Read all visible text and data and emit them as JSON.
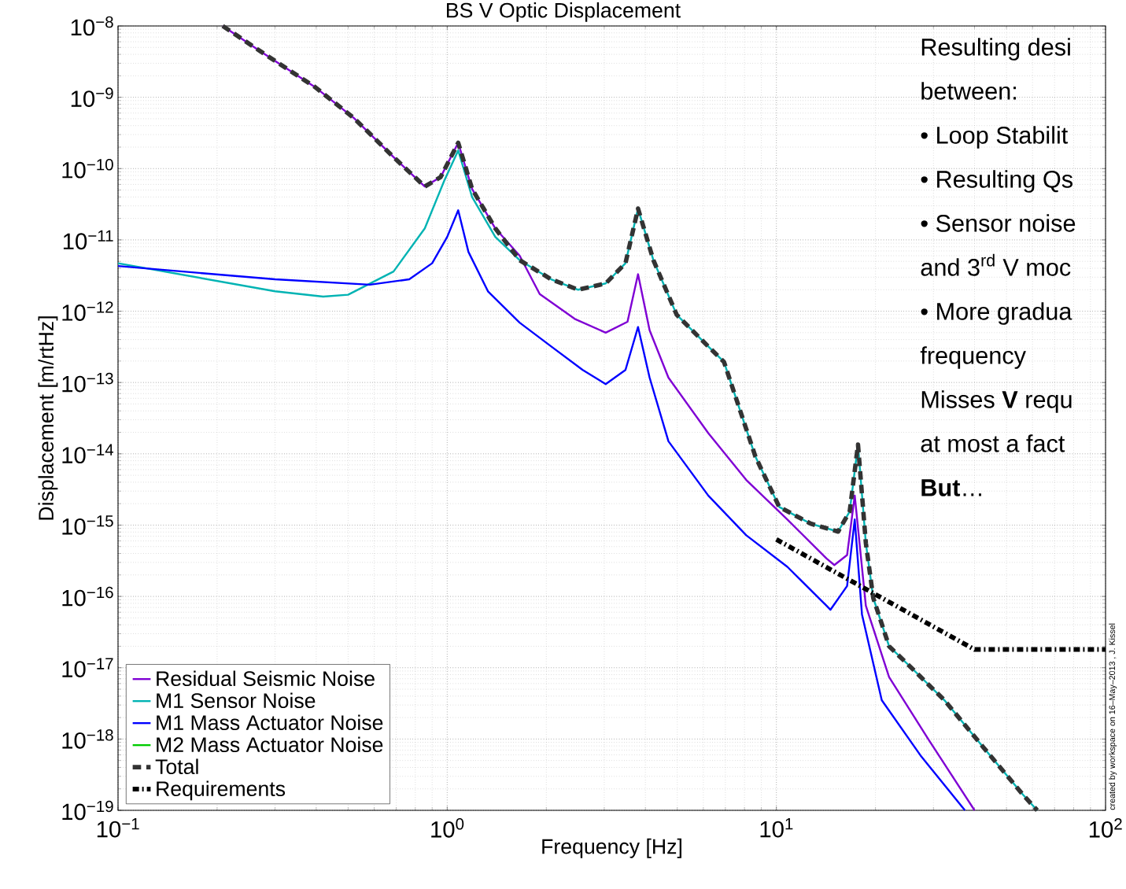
{
  "chart_data": {
    "type": "line",
    "title": "BS V Optic Displacement",
    "xlabel": "Frequency [Hz]",
    "ylabel": "Displacement [m/rtHz]",
    "log": "xy",
    "grid": true,
    "legend": "bottom left",
    "xlim": [
      0.1,
      100
    ],
    "ylim": [
      1e-19,
      1e-08
    ],
    "xticks": [
      {
        "value": 0.1,
        "label": "10$^{−1}$"
      },
      {
        "value": 1,
        "label": "10$^{0}$"
      },
      {
        "value": 10,
        "label": "10$^{1}$"
      },
      {
        "value": 100,
        "label": "10$^{2}$"
      }
    ],
    "yticks": [
      {
        "value": 1e-19,
        "label": "10$^{−19}$"
      },
      {
        "value": 1e-18,
        "label": "10$^{−18}$"
      },
      {
        "value": 1e-17,
        "label": "10$^{−17}$"
      },
      {
        "value": 1e-16,
        "label": "10$^{−16}$"
      },
      {
        "value": 1e-15,
        "label": "10$^{−15}$"
      },
      {
        "value": 1e-14,
        "label": "10$^{−14}$"
      },
      {
        "value": 1e-13,
        "label": "10$^{−13}$"
      },
      {
        "value": 1e-12,
        "label": "10$^{−12}$"
      },
      {
        "value": 1e-11,
        "label": "10$^{−11}$"
      },
      {
        "value": 1e-10,
        "label": "10$^{−10}$"
      },
      {
        "value": 1e-09,
        "label": "10$^{−9}$"
      },
      {
        "value": 1e-08,
        "label": "10$^{−8}$"
      }
    ],
    "series": [
      {
        "name": "Residual Seismic Noise",
        "color": "#7f00d4",
        "line_style": "solid",
        "x": [
          0.208,
          0.269,
          0.396,
          0.521,
          0.687,
          0.855,
          0.955,
          1.08,
          1.19,
          1.4,
          1.66,
          1.91,
          2.44,
          3.03,
          3.53,
          3.8,
          4.12,
          4.7,
          6.21,
          8.1,
          10.8,
          14.2,
          15.0,
          16.4,
          17.3,
          18.7,
          22.0,
          29.0,
          40.0
        ],
        "values": [
          1e-08,
          4.5e-09,
          1.4e-09,
          5.1e-10,
          1.45e-10,
          5.6e-11,
          7.6e-11,
          2.3e-10,
          5.2e-11,
          1.45e-11,
          6e-12,
          1.74e-12,
          7.8e-13,
          5e-13,
          7.1e-13,
          3.3e-12,
          5.4e-13,
          1.17e-13,
          1.95e-14,
          4.3e-15,
          1.2e-15,
          3.4e-16,
          2.75e-16,
          3.8e-16,
          2.6e-15,
          7.4e-17,
          7.4e-18,
          9.8e-19,
          1e-19
        ]
      },
      {
        "name": "M1 Sensor Noise",
        "color": "#00b3b3",
        "line_style": "solid",
        "x": [
          0.1,
          0.3,
          0.42,
          0.5,
          0.687,
          0.855,
          0.98,
          1.08,
          1.19,
          1.4,
          1.66,
          2.07,
          2.5,
          3.03,
          3.48,
          3.8,
          4.23,
          4.98,
          6.21,
          6.93,
          7.74,
          8.64,
          10.2,
          12.7,
          15.4,
          16.7,
          17.7,
          18.7,
          19.7,
          22.0,
          26.0,
          32.4,
          42.6,
          56.1,
          62.0
        ],
        "values": [
          4.7e-12,
          1.9e-12,
          1.6e-12,
          1.7e-12,
          3.6e-12,
          1.45e-11,
          6.8e-11,
          1.8e-10,
          4e-11,
          1.1e-11,
          5.2e-12,
          2.8e-12,
          2e-12,
          2.45e-12,
          4.7e-12,
          2.75e-11,
          5.2e-12,
          8.9e-13,
          3.2e-13,
          1.95e-13,
          4.2e-14,
          9.1e-15,
          1.8e-15,
          1.05e-15,
          8.1e-16,
          1.55e-15,
          1.35e-14,
          5.6e-16,
          9.5e-17,
          2e-17,
          9.5e-18,
          3.5e-18,
          7.6e-19,
          1.66e-19,
          1e-19
        ]
      },
      {
        "name": "M1 Mass Actuator Noise",
        "color": "#0000ff",
        "line_style": "solid",
        "x": [
          0.1,
          0.3,
          0.582,
          0.767,
          0.9,
          1.0,
          1.08,
          1.16,
          1.33,
          1.66,
          2.07,
          2.58,
          3.03,
          3.48,
          3.8,
          4.12,
          4.7,
          6.21,
          8.1,
          10.8,
          14.2,
          14.6,
          16.4,
          17.3,
          18.2,
          20.9,
          27.4,
          37.4
        ],
        "values": [
          4.3e-12,
          2.8e-12,
          2.35e-12,
          2.8e-12,
          4.7e-12,
          1.1e-11,
          2.6e-11,
          6.8e-12,
          1.9e-12,
          6.9e-13,
          3.2e-13,
          1.5e-13,
          9.5e-14,
          1.5e-13,
          6e-13,
          1.17e-13,
          1.5e-14,
          2.6e-15,
          7.2e-16,
          2.6e-16,
          7.4e-17,
          6.5e-17,
          1.4e-16,
          1.2e-15,
          5.6e-17,
          3.5e-18,
          5.9e-19,
          1e-19
        ]
      },
      {
        "name": "M2 Mass Actuator Noise",
        "color": "#00cc00",
        "line_style": "solid"
      },
      {
        "name": "Total",
        "color": "#333333",
        "line_style": "dashed",
        "x": [
          0.208,
          0.269,
          0.396,
          0.521,
          0.687,
          0.855,
          0.955,
          1.08,
          1.19,
          1.4,
          1.66,
          2.07,
          2.5,
          3.03,
          3.48,
          3.8,
          4.23,
          4.98,
          6.21,
          6.93,
          7.74,
          8.64,
          10.2,
          12.7,
          15.4,
          16.7,
          17.7,
          18.7,
          19.7,
          22.0,
          26.0,
          32.4,
          42.6,
          56.1,
          62.0
        ],
        "values": [
          1e-08,
          4.5e-09,
          1.4e-09,
          5.1e-10,
          1.45e-10,
          5.6e-11,
          7.6e-11,
          2.3e-10,
          5.2e-11,
          1.45e-11,
          5.2e-12,
          2.8e-12,
          2e-12,
          2.45e-12,
          4.7e-12,
          2.75e-11,
          5.2e-12,
          8.9e-13,
          3.2e-13,
          1.95e-13,
          4.2e-14,
          9.1e-15,
          1.8e-15,
          1.05e-15,
          8.1e-16,
          1.55e-15,
          1.35e-14,
          5.6e-16,
          9.5e-17,
          2e-17,
          9.5e-18,
          3.5e-18,
          7.6e-19,
          1.66e-19,
          1e-19
        ]
      },
      {
        "name": "Requirements",
        "color": "#000000",
        "line_style": "dotted",
        "x": [
          10,
          40,
          100
        ],
        "values": [
          6.3e-16,
          1.8e-17,
          1.8e-17
        ]
      }
    ],
    "annotations": [
      "Resulting desi",
      "between:",
      "• Loop Stabilit",
      "• Resulting Qs",
      "• Sensor noise",
      "and 3$^{rd}$ V moc",
      "• More gradua",
      "frequency",
      "Misses **V** requ",
      "at most a fact",
      "**But**…",
      "created by workspace on 16–May–2013 , J. Kissel"
    ]
  }
}
